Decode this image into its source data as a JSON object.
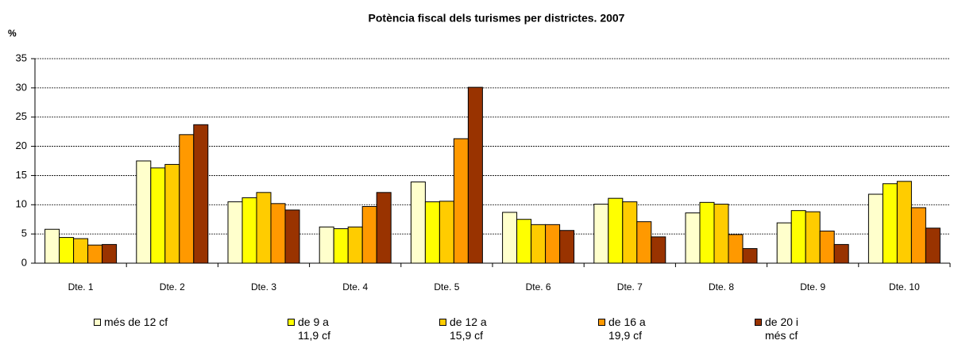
{
  "chart_data": {
    "type": "bar",
    "title": "Potència fiscal dels turismes per districtes. 2007",
    "y_axis_label": "%",
    "categories": [
      "Dte. 1",
      "Dte. 2",
      "Dte. 3",
      "Dte. 4",
      "Dte. 5",
      "Dte. 6",
      "Dte. 7",
      "Dte. 8",
      "Dte. 9",
      "Dte. 10"
    ],
    "series": [
      {
        "name": "més de 12 cf",
        "color": "#ffffcc",
        "values": [
          5.8,
          17.5,
          10.5,
          6.2,
          13.9,
          8.7,
          10.1,
          8.6,
          6.9,
          11.8
        ]
      },
      {
        "name": "de 9 a\n11,9 cf",
        "color": "#ffff00",
        "values": [
          4.4,
          16.3,
          11.2,
          5.9,
          10.5,
          7.5,
          11.1,
          10.4,
          9.0,
          13.6
        ]
      },
      {
        "name": "de 12 a\n15,9 cf",
        "color": "#ffcc00",
        "values": [
          4.2,
          16.9,
          12.1,
          6.2,
          10.6,
          6.6,
          10.5,
          10.1,
          8.8,
          14.0
        ]
      },
      {
        "name": "de 16 a\n19,9 cf",
        "color": "#ff9900",
        "values": [
          3.1,
          22.0,
          10.2,
          9.7,
          21.3,
          6.6,
          7.1,
          4.9,
          5.5,
          9.5
        ]
      },
      {
        "name": "de 20 i\nmés cf",
        "color": "#993300",
        "values": [
          3.2,
          23.7,
          9.1,
          12.1,
          30.1,
          5.6,
          4.5,
          2.5,
          3.2,
          6.0
        ]
      }
    ],
    "ylim": [
      0,
      35
    ],
    "yticks": [
      0,
      5,
      10,
      15,
      20,
      25,
      30,
      35
    ],
    "grid": true
  }
}
